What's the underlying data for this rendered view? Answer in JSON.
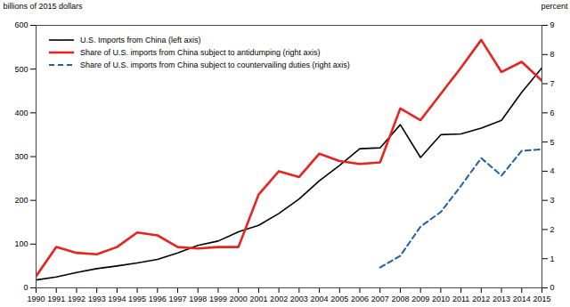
{
  "chart_data": {
    "type": "line",
    "x": [
      1990,
      1991,
      1992,
      1993,
      1994,
      1995,
      1996,
      1997,
      1998,
      1999,
      2000,
      2001,
      2002,
      2003,
      2004,
      2005,
      2006,
      2007,
      2008,
      2009,
      2010,
      2011,
      2012,
      2013,
      2014,
      2015
    ],
    "xlim": [
      1990,
      2015
    ],
    "xticks": [
      1990,
      1991,
      1992,
      1993,
      1994,
      1995,
      1996,
      1997,
      1998,
      1999,
      2000,
      2001,
      2002,
      2003,
      2004,
      2005,
      2006,
      2007,
      2008,
      2009,
      2010,
      2011,
      2012,
      2013,
      2014,
      2015
    ],
    "y_label": "billions of 2015 dollars",
    "ylim": [
      0,
      600
    ],
    "yticks": [
      0,
      100,
      200,
      300,
      400,
      500,
      600
    ],
    "y2_label": "percent",
    "y2lim": [
      0,
      9
    ],
    "y2ticks": [
      0,
      1,
      2,
      3,
      4,
      5,
      6,
      7,
      8,
      9
    ],
    "grid": false,
    "legend": "top-left",
    "series": [
      {
        "name": "U.S. Imports from China (left axis)",
        "color": "#000000",
        "line_style": "solid",
        "values": [
          18,
          25,
          35,
          44,
          50,
          57,
          65,
          80,
          97,
          107,
          128,
          143,
          170,
          203,
          245,
          280,
          318,
          320,
          373,
          298,
          350,
          352,
          365,
          383,
          447,
          503
        ]
      },
      {
        "name": "Share of U.S. imports from China subject to antidumping (right axis)",
        "color": "#e8231f",
        "line_style": "solid",
        "axis": "y2",
        "values": [
          0.4,
          1.4,
          1.2,
          1.15,
          1.4,
          1.9,
          1.8,
          1.4,
          1.35,
          1.4,
          1.4,
          3.2,
          4.0,
          3.8,
          4.6,
          4.35,
          4.25,
          4.3,
          6.15,
          5.75,
          6.65,
          7.55,
          8.5,
          7.4,
          7.75,
          7.1
        ]
      },
      {
        "name": "Share of U.S. imports from China subject to countervailing duties (right axis)",
        "color": "#1f5fa8",
        "line_style": "dashed",
        "axis": "y2",
        "values": [
          null,
          null,
          null,
          null,
          null,
          null,
          null,
          null,
          null,
          null,
          null,
          null,
          null,
          null,
          null,
          null,
          null,
          0.7,
          1.1,
          2.1,
          2.6,
          3.5,
          4.45,
          3.85,
          4.7,
          4.75
        ]
      }
    ]
  }
}
